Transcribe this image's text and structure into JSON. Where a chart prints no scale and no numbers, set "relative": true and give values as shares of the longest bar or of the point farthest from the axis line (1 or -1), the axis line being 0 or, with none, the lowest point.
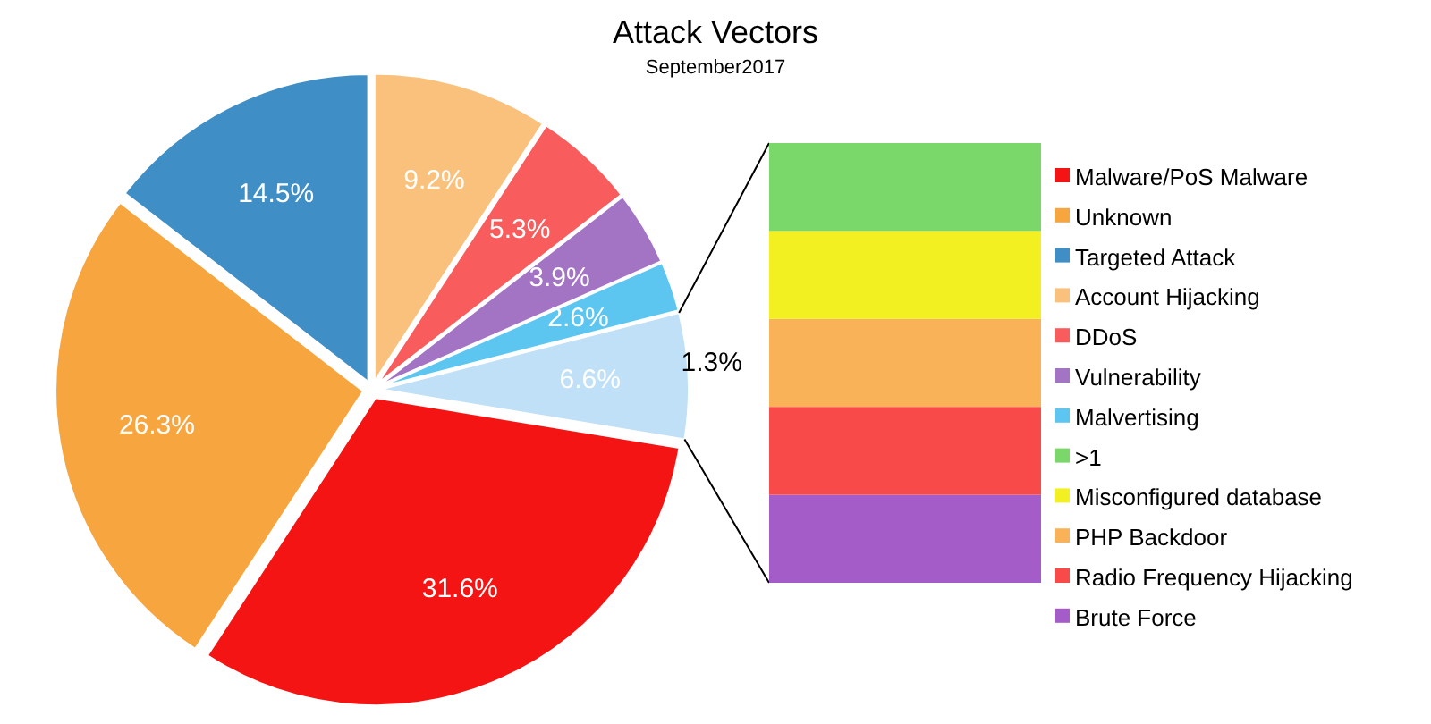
{
  "chart_data": [
    {
      "type": "pie",
      "title": "Attack Vectors",
      "subtitle": "September2017",
      "categories": [
        "Malware/PoS Malware",
        "Unknown",
        "Targeted Attack",
        "Account Hijacking",
        "DDoS",
        "Vulnerability",
        "Malvertising",
        null
      ],
      "values": [
        31.6,
        26.3,
        14.5,
        9.2,
        5.3,
        3.9,
        2.6,
        6.6
      ],
      "value_labels": [
        "31.6%",
        "26.3%",
        "14.5%",
        "9.2%",
        "5.3%",
        "3.9%",
        "2.6%",
        "6.6%"
      ],
      "colors": [
        "#f41414",
        "#f7a53e",
        "#3f8fc6",
        "#f9c17c",
        "#f95c5c",
        "#a474c4",
        "#5cc6f0",
        "#bfe0f6"
      ],
      "legend": "right"
    },
    {
      "type": "bar",
      "stacked": true,
      "relative": true,
      "categories": [
        null
      ],
      "annotations": [
        "1.3%"
      ],
      "series": [
        {
          "name": "Brute Force",
          "color": "#a45cc8",
          "values": [
            0.2
          ]
        },
        {
          "name": "Radio Frequency Hijacking",
          "color": "#f94a4a",
          "values": [
            0.2
          ]
        },
        {
          "name": "PHP Backdoor",
          "color": "#f9b258",
          "values": [
            0.2
          ]
        },
        {
          "name": "Misconfigured database",
          "color": "#f2f020",
          "values": [
            0.2
          ]
        },
        {
          "name": ">1",
          "color": "#7ad86a",
          "values": [
            0.2
          ]
        }
      ],
      "legend": "right"
    }
  ]
}
